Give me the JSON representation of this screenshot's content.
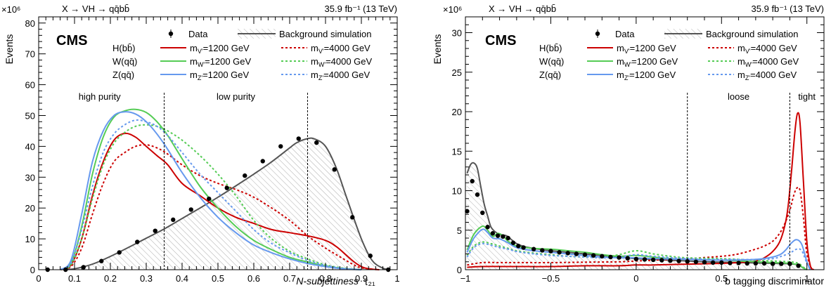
{
  "chart_data": [
    {
      "id": "left",
      "type": "line",
      "process_label": "X → VH → qq̄bb̄",
      "lumi_label": "35.9 fb⁻¹ (13 TeV)",
      "experiment": "CMS",
      "multiplier": "×10⁶",
      "xlabel_main": "N-subjettiness",
      "xlabel_var": "τ₂₁",
      "ylabel": "Events",
      "xlim": [
        0,
        1
      ],
      "ylim": [
        0,
        82
      ],
      "xticks": [
        0,
        0.1,
        0.2,
        0.3,
        0.4,
        0.5,
        0.6,
        0.7,
        0.8,
        0.9,
        1
      ],
      "xtick_labels": [
        "0",
        "0.1",
        "0.2",
        "0.3",
        "0.4",
        "0.5",
        "0.6",
        "0.7",
        "0.8",
        "0.9",
        "1"
      ],
      "yticks": [
        0,
        10,
        20,
        30,
        40,
        50,
        60,
        70,
        80
      ],
      "ytick_labels": [
        "0",
        "10",
        "20",
        "30",
        "40",
        "50",
        "60",
        "70",
        "80"
      ],
      "cuts": [
        0.35,
        0.75
      ],
      "region_labels": [
        {
          "text": "high purity",
          "x": 0.17
        },
        {
          "text": "low purity",
          "x": 0.55
        }
      ],
      "data": {
        "name": "Data",
        "x": [
          0.025,
          0.075,
          0.125,
          0.175,
          0.225,
          0.275,
          0.325,
          0.375,
          0.425,
          0.475,
          0.525,
          0.575,
          0.625,
          0.675,
          0.725,
          0.775,
          0.825,
          0.875,
          0.925,
          0.975
        ],
        "y": [
          0,
          0,
          0.8,
          2.8,
          5.6,
          9.0,
          12.6,
          16.2,
          19.5,
          23.0,
          26.5,
          30.5,
          35.2,
          40.0,
          42.5,
          41.2,
          32.5,
          17.0,
          4.5,
          0
        ]
      },
      "background": {
        "name": "Background simulation",
        "x": [
          0.07,
          0.1,
          0.15,
          0.2,
          0.25,
          0.3,
          0.35,
          0.4,
          0.45,
          0.5,
          0.55,
          0.6,
          0.65,
          0.7,
          0.72,
          0.75,
          0.77,
          0.8,
          0.83,
          0.86,
          0.9,
          0.93,
          0.96,
          0.98
        ],
        "y": [
          0,
          0.3,
          1.8,
          4.3,
          7.2,
          10.2,
          13.2,
          16.6,
          20.0,
          23.5,
          27.2,
          31.0,
          35.0,
          39.5,
          41.2,
          42.5,
          42.4,
          40.0,
          33.0,
          23.0,
          10.0,
          3.0,
          0.5,
          0
        ]
      },
      "signals": [
        {
          "name": "H(bb̄)",
          "mass": "1200",
          "color": "#cc0000",
          "dash": false,
          "x": [
            0.06,
            0.09,
            0.12,
            0.15,
            0.18,
            0.21,
            0.24,
            0.27,
            0.3,
            0.33,
            0.36,
            0.4,
            0.45,
            0.5,
            0.55,
            0.6,
            0.65,
            0.7,
            0.75,
            0.8,
            0.83,
            0.86,
            0.88,
            0.9,
            0.92,
            0.95
          ],
          "y": [
            0,
            1.5,
            10,
            24,
            35,
            42,
            44.2,
            43,
            40,
            37,
            34,
            28,
            24,
            20,
            17,
            15,
            13,
            12,
            11,
            9.5,
            7.5,
            4.5,
            2.5,
            1.0,
            0.3,
            0
          ]
        },
        {
          "name": "H(bb̄)",
          "mass": "4000",
          "color": "#cc0000",
          "dash": true,
          "x": [
            0.06,
            0.09,
            0.12,
            0.15,
            0.18,
            0.21,
            0.24,
            0.27,
            0.3,
            0.33,
            0.36,
            0.4,
            0.45,
            0.5,
            0.55,
            0.6,
            0.65,
            0.7,
            0.75,
            0.8,
            0.85,
            0.88,
            0.9,
            0.93,
            0.95
          ],
          "y": [
            0,
            1,
            7,
            18,
            28,
            35,
            38,
            40,
            40.5,
            39.5,
            37.5,
            34,
            30.5,
            28,
            26,
            23.5,
            20,
            16,
            11,
            7,
            3.5,
            1.5,
            0.6,
            0.2,
            0
          ]
        },
        {
          "name": "W(qq̄)",
          "mass": "1200",
          "color": "#55cc55",
          "dash": false,
          "x": [
            0.06,
            0.09,
            0.12,
            0.15,
            0.18,
            0.21,
            0.24,
            0.27,
            0.3,
            0.33,
            0.36,
            0.4,
            0.45,
            0.5,
            0.55,
            0.6,
            0.65,
            0.7,
            0.75,
            0.8,
            0.85,
            0.9
          ],
          "y": [
            0,
            2,
            14,
            31,
            43,
            49.5,
            51.5,
            52,
            51,
            48,
            43.5,
            36,
            27,
            20,
            14,
            9.5,
            6.5,
            4,
            2.5,
            1.2,
            0.4,
            0
          ]
        },
        {
          "name": "W(qq̄)",
          "mass": "4000",
          "color": "#55cc55",
          "dash": true,
          "x": [
            0.06,
            0.09,
            0.12,
            0.15,
            0.18,
            0.21,
            0.24,
            0.27,
            0.3,
            0.33,
            0.36,
            0.4,
            0.45,
            0.5,
            0.55,
            0.6,
            0.65,
            0.7,
            0.75,
            0.8,
            0.85,
            0.9
          ],
          "y": [
            0,
            1.5,
            10,
            23,
            34,
            41,
            44.5,
            46.5,
            47,
            46.5,
            45,
            42,
            37,
            31,
            24,
            16,
            10,
            6,
            3.5,
            1.6,
            0.5,
            0
          ]
        },
        {
          "name": "Z(qq̄)",
          "mass": "1200",
          "color": "#6699ee",
          "dash": false,
          "x": [
            0.06,
            0.09,
            0.12,
            0.15,
            0.18,
            0.21,
            0.24,
            0.27,
            0.3,
            0.33,
            0.36,
            0.4,
            0.45,
            0.5,
            0.55,
            0.6,
            0.65,
            0.7,
            0.75,
            0.8,
            0.85,
            0.9
          ],
          "y": [
            0,
            3,
            18,
            35,
            45,
            50,
            51.2,
            50.5,
            48,
            44,
            39,
            31.5,
            23.5,
            17,
            12,
            8,
            5.5,
            3.5,
            2,
            1,
            0.3,
            0
          ]
        },
        {
          "name": "Z(qq̄)",
          "mass": "4000",
          "color": "#6699ee",
          "dash": true,
          "x": [
            0.06,
            0.09,
            0.12,
            0.15,
            0.18,
            0.21,
            0.24,
            0.27,
            0.3,
            0.33,
            0.36,
            0.4,
            0.45,
            0.5,
            0.55,
            0.6,
            0.65,
            0.7,
            0.75,
            0.8,
            0.85,
            0.9
          ],
          "y": [
            0,
            2,
            13,
            27,
            38,
            44,
            47,
            48.5,
            48,
            46.5,
            43.5,
            38,
            31,
            25,
            19,
            13,
            8.5,
            5.5,
            3,
            1.4,
            0.4,
            0
          ]
        }
      ]
    },
    {
      "id": "right",
      "type": "line",
      "process_label": "X → VH → qq̄bb̄",
      "lumi_label": "35.9 fb⁻¹ (13 TeV)",
      "experiment": "CMS",
      "multiplier": "×10⁶",
      "xlabel_main": "b tagging discriminator",
      "xlabel_var": "",
      "ylabel": "Events",
      "xlim": [
        -1,
        1.1
      ],
      "ylim": [
        0,
        32
      ],
      "xticks": [
        -1,
        -0.5,
        0,
        0.5,
        1
      ],
      "xtick_labels": [
        "−1",
        "−0.5",
        "0",
        "0.5",
        "1"
      ],
      "yticks": [
        0,
        5,
        10,
        15,
        20,
        25,
        30
      ],
      "ytick_labels": [
        "0",
        "5",
        "10",
        "15",
        "20",
        "25",
        "30"
      ],
      "cuts": [
        0.3,
        0.9
      ],
      "region_labels": [
        {
          "text": "loose",
          "x": 0.6
        },
        {
          "text": "tight",
          "x": 1.0
        }
      ],
      "data": {
        "name": "Data",
        "x": [
          -0.99,
          -0.96,
          -0.93,
          -0.9,
          -0.87,
          -0.84,
          -0.81,
          -0.78,
          -0.75,
          -0.72,
          -0.69,
          -0.66,
          -0.6,
          -0.55,
          -0.5,
          -0.45,
          -0.4,
          -0.35,
          -0.3,
          -0.25,
          -0.2,
          -0.15,
          -0.1,
          -0.05,
          0,
          0.05,
          0.1,
          0.15,
          0.2,
          0.25,
          0.3,
          0.35,
          0.4,
          0.45,
          0.5,
          0.55,
          0.6,
          0.65,
          0.7,
          0.75,
          0.8,
          0.85,
          0.9,
          0.95
        ],
        "y": [
          7.4,
          11.2,
          9.5,
          7.2,
          5.4,
          4.6,
          4.3,
          4.2,
          4.0,
          3.4,
          3.0,
          2.8,
          2.6,
          2.45,
          2.35,
          2.2,
          2.1,
          2.0,
          1.9,
          1.8,
          1.7,
          1.6,
          1.55,
          1.45,
          1.35,
          1.3,
          1.25,
          1.2,
          1.15,
          1.1,
          1.05,
          1.0,
          0.95,
          0.9,
          0.9,
          0.85,
          0.85,
          0.8,
          0.8,
          0.8,
          0.75,
          0.75,
          0.75,
          0.5
        ]
      },
      "background": {
        "name": "Background simulation",
        "x": [
          -0.99,
          -0.97,
          -0.95,
          -0.93,
          -0.91,
          -0.89,
          -0.87,
          -0.85,
          -0.82,
          -0.79,
          -0.76,
          -0.73,
          -0.7,
          -0.65,
          -0.6,
          -0.5,
          -0.4,
          -0.3,
          -0.2,
          -0.1,
          0,
          0.1,
          0.2,
          0.3,
          0.4,
          0.5,
          0.6,
          0.7,
          0.8,
          0.9,
          0.95,
          0.98,
          1.0
        ],
        "y": [
          12.2,
          13.3,
          13.5,
          12.8,
          10.5,
          8.3,
          6.8,
          5.4,
          4.7,
          4.4,
          4.3,
          3.8,
          3.3,
          2.9,
          2.7,
          2.4,
          2.2,
          2.0,
          1.8,
          1.6,
          1.4,
          1.3,
          1.2,
          1.1,
          1.0,
          0.95,
          0.9,
          0.85,
          0.8,
          0.75,
          0.6,
          0.2,
          0
        ]
      },
      "signals": [
        {
          "name": "H(bb̄)",
          "mass": "1200",
          "color": "#cc0000",
          "dash": false,
          "x": [
            -0.99,
            -0.9,
            -0.7,
            -0.5,
            -0.3,
            -0.1,
            0,
            0.1,
            0.3,
            0.5,
            0.6,
            0.7,
            0.75,
            0.8,
            0.84,
            0.87,
            0.89,
            0.91,
            0.93,
            0.945,
            0.96,
            0.98,
            1.0,
            1.02,
            1.04
          ],
          "y": [
            0.3,
            0.4,
            0.4,
            0.4,
            0.5,
            0.5,
            0.6,
            0.6,
            0.7,
            0.8,
            0.9,
            1.1,
            1.5,
            2.3,
            3.5,
            5.5,
            8.0,
            12.5,
            17.5,
            19.8,
            18.5,
            11.0,
            3.5,
            0.5,
            0
          ]
        },
        {
          "name": "H(bb̄)",
          "mass": "4000",
          "color": "#cc0000",
          "dash": true,
          "x": [
            -0.99,
            -0.9,
            -0.8,
            -0.7,
            -0.5,
            -0.3,
            -0.1,
            0,
            0.1,
            0.3,
            0.5,
            0.6,
            0.7,
            0.75,
            0.8,
            0.84,
            0.87,
            0.9,
            0.92,
            0.94,
            0.96,
            0.98,
            1.0,
            1.03
          ],
          "y": [
            0.6,
            0.9,
            0.9,
            0.9,
            0.9,
            0.95,
            1.0,
            1.1,
            1.2,
            1.4,
            1.7,
            2.0,
            2.6,
            3.0,
            3.6,
            4.6,
            5.8,
            7.5,
            9.2,
            10.3,
            10.0,
            6.5,
            2.0,
            0
          ]
        },
        {
          "name": "W(qq̄)",
          "mass": "1200",
          "color": "#55cc55",
          "dash": false,
          "x": [
            -0.99,
            -0.95,
            -0.9,
            -0.87,
            -0.84,
            -0.81,
            -0.78,
            -0.75,
            -0.7,
            -0.6,
            -0.5,
            -0.4,
            -0.3,
            -0.2,
            -0.1,
            0,
            0.1,
            0.2,
            0.3,
            0.5,
            0.7,
            0.8,
            0.9,
            0.95,
            0.98,
            1.0
          ],
          "y": [
            2.5,
            4.5,
            5.5,
            5.0,
            4.2,
            4.6,
            4.3,
            3.6,
            3.0,
            2.7,
            2.6,
            2.4,
            2.2,
            1.9,
            1.7,
            1.8,
            1.6,
            1.4,
            1.3,
            1.2,
            1.0,
            0.9,
            0.8,
            0.6,
            0.2,
            0
          ]
        },
        {
          "name": "W(qq̄)",
          "mass": "4000",
          "color": "#55cc55",
          "dash": true,
          "x": [
            -0.99,
            -0.95,
            -0.9,
            -0.85,
            -0.8,
            -0.75,
            -0.7,
            -0.6,
            -0.5,
            -0.4,
            -0.3,
            -0.2,
            -0.1,
            0,
            0.1,
            0.2,
            0.3,
            0.5,
            0.7,
            0.8,
            0.9,
            0.95,
            0.98,
            1.0
          ],
          "y": [
            1.8,
            3.0,
            3.5,
            3.3,
            3.0,
            2.7,
            2.4,
            2.1,
            1.9,
            1.7,
            1.6,
            1.6,
            1.9,
            2.4,
            2.0,
            1.7,
            1.5,
            1.4,
            1.2,
            1.1,
            1.0,
            0.8,
            0.3,
            0
          ]
        },
        {
          "name": "Z(qq̄)",
          "mass": "1200",
          "color": "#6699ee",
          "dash": false,
          "x": [
            -0.99,
            -0.95,
            -0.9,
            -0.87,
            -0.84,
            -0.8,
            -0.75,
            -0.7,
            -0.6,
            -0.5,
            -0.4,
            -0.3,
            -0.2,
            -0.1,
            0,
            0.1,
            0.3,
            0.5,
            0.7,
            0.8,
            0.85,
            0.88,
            0.91,
            0.94,
            0.97,
            1.0,
            1.02
          ],
          "y": [
            2.2,
            4.0,
            5.1,
            4.7,
            4.0,
            3.9,
            3.4,
            2.8,
            2.4,
            2.2,
            2.0,
            1.8,
            1.6,
            1.5,
            1.5,
            1.4,
            1.3,
            1.2,
            1.3,
            1.6,
            2.0,
            2.6,
            3.4,
            3.8,
            3.2,
            1.0,
            0
          ]
        },
        {
          "name": "Z(qq̄)",
          "mass": "4000",
          "color": "#6699ee",
          "dash": true,
          "x": [
            -0.99,
            -0.95,
            -0.9,
            -0.85,
            -0.8,
            -0.75,
            -0.7,
            -0.6,
            -0.5,
            -0.4,
            -0.3,
            -0.2,
            -0.1,
            0,
            0.1,
            0.3,
            0.5,
            0.7,
            0.8,
            0.85,
            0.9,
            0.94,
            0.97,
            1.0,
            1.02
          ],
          "y": [
            1.6,
            2.8,
            3.3,
            3.1,
            2.8,
            2.6,
            2.3,
            2.0,
            1.8,
            1.7,
            1.6,
            1.5,
            1.6,
            1.9,
            1.7,
            1.4,
            1.3,
            1.3,
            1.4,
            1.7,
            2.1,
            2.6,
            2.4,
            0.8,
            0
          ]
        }
      ]
    }
  ],
  "legend": {
    "data_label": "Data",
    "bkg_label": "Background simulation",
    "rows": [
      {
        "process": "H(bb̄)",
        "label_1200": "m",
        "sub_1200": "V'",
        "val_1200": "=1200 GeV",
        "label_4000": "m",
        "sub_4000": "V'",
        "val_4000": "=4000 GeV",
        "color": "#cc0000"
      },
      {
        "process": "W(qq̄)",
        "label_1200": "m",
        "sub_1200": "W'",
        "val_1200": "=1200 GeV",
        "label_4000": "m",
        "sub_4000": "W'",
        "val_4000": "=4000 GeV",
        "color": "#55cc55"
      },
      {
        "process": "Z(qq̄)",
        "label_1200": "m",
        "sub_1200": "Z'",
        "val_1200": "=1200 GeV",
        "label_4000": "m",
        "sub_4000": "Z'",
        "val_4000": "=4000 GeV",
        "color": "#6699ee"
      }
    ]
  }
}
